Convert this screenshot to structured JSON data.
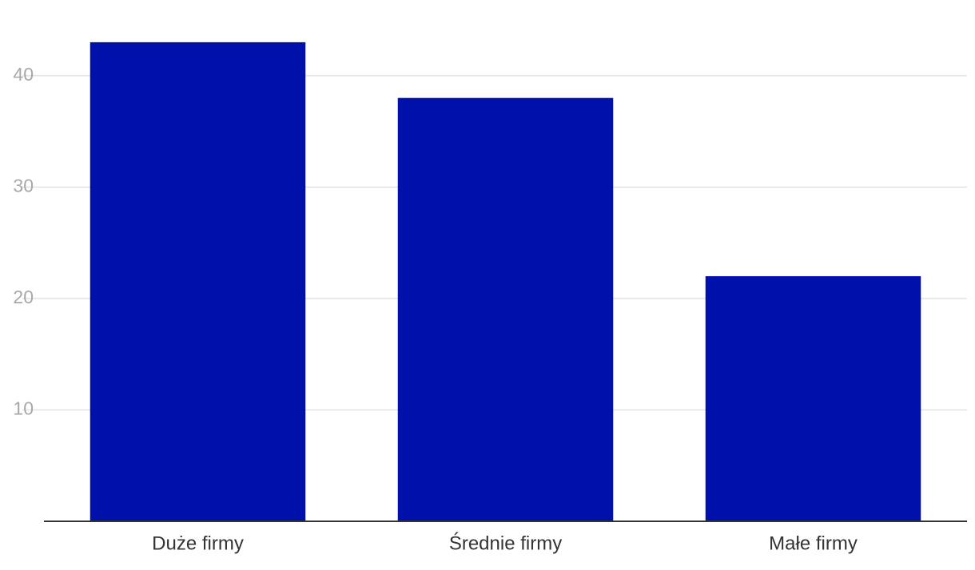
{
  "chart_data": {
    "type": "bar",
    "categories": [
      "Duże firmy",
      "Średnie firmy",
      "Małe firmy"
    ],
    "values": [
      43,
      38,
      22
    ],
    "color": "#0010ab",
    "ylim": [
      0,
      45
    ],
    "yticks": [
      10,
      20,
      30,
      40
    ],
    "grid": true
  }
}
